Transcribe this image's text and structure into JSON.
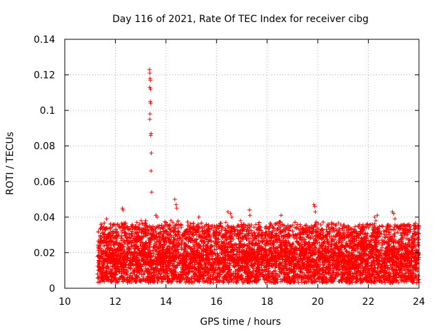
{
  "chart_data": {
    "type": "scatter",
    "title": "Day 116 of 2021, Rate Of TEC Index for receiver cibg",
    "xlabel": "GPS time / hours",
    "ylabel": "ROTI / TECUs",
    "xlim": [
      10,
      24
    ],
    "ylim": [
      0,
      0.14
    ],
    "xticks": [
      10,
      12,
      14,
      16,
      18,
      20,
      22,
      24
    ],
    "yticks": [
      0,
      0.02,
      0.04,
      0.06,
      0.08,
      0.1,
      0.12,
      0.14
    ],
    "xtick_labels": [
      "10",
      "12",
      "14",
      "16",
      "18",
      "20",
      "22",
      "24"
    ],
    "ytick_labels": [
      "0",
      "0.02",
      "0.04",
      "0.06",
      "0.08",
      "0.1",
      "0.12",
      "0.14"
    ],
    "grid": true,
    "marker": "+",
    "color": "#ff0000",
    "series": [
      {
        "name": "ROTI",
        "description_of_density": "dense band of points from 11.3 h to 24 h, mostly between 0.005 and 0.03 TECU",
        "band": {
          "x_start": 11.3,
          "x_end": 24.0,
          "y_low": 0.006,
          "y_high": 0.028
        },
        "x": [
          13.35,
          13.36,
          13.37,
          13.38,
          13.36,
          13.39,
          13.38,
          13.4,
          13.36,
          13.37,
          13.41,
          13.4,
          13.42,
          13.41,
          13.43,
          14.35,
          14.4,
          14.42,
          12.28,
          12.3,
          11.65,
          16.45,
          16.55,
          16.6,
          17.3,
          17.32,
          18.55,
          19.85,
          19.88,
          19.9,
          22.25,
          22.3,
          22.35,
          22.95,
          23.0,
          23.05,
          15.3,
          12.85,
          12.95,
          13.6,
          13.65,
          21.2,
          20.4,
          16.95,
          18.1
        ],
        "y": [
          0.123,
          0.121,
          0.118,
          0.117,
          0.113,
          0.112,
          0.105,
          0.104,
          0.095,
          0.098,
          0.087,
          0.086,
          0.076,
          0.066,
          0.054,
          0.05,
          0.047,
          0.045,
          0.045,
          0.044,
          0.039,
          0.043,
          0.042,
          0.04,
          0.044,
          0.041,
          0.041,
          0.047,
          0.046,
          0.043,
          0.04,
          0.038,
          0.041,
          0.043,
          0.042,
          0.039,
          0.04,
          0.037,
          0.036,
          0.041,
          0.04,
          0.035,
          0.036,
          0.038,
          0.034
        ]
      }
    ]
  }
}
